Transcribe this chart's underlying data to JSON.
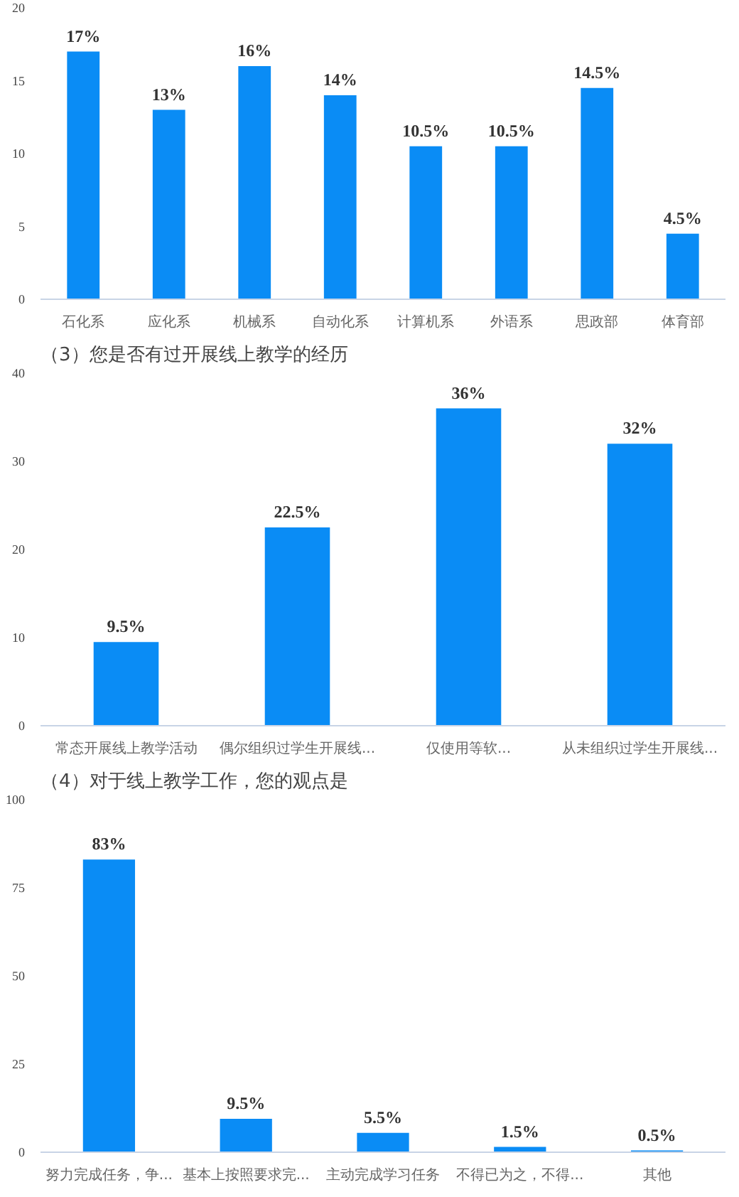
{
  "chart_data": [
    {
      "type": "bar",
      "categories": [
        "石化系",
        "应化系",
        "机械系",
        "自动化系",
        "计算机系",
        "外语系",
        "思政部",
        "体育部"
      ],
      "values": [
        17,
        13,
        16,
        14,
        10.5,
        10.5,
        14.5,
        4.5
      ],
      "value_labels": [
        "17%",
        "13%",
        "16%",
        "14%",
        "10.5%",
        "10.5%",
        "14.5%",
        "4.5%"
      ],
      "color": "#0a8cf5",
      "ylim": [
        0,
        20
      ],
      "yticks": [
        0,
        5,
        10,
        15,
        20
      ]
    },
    {
      "type": "bar",
      "title": "（3）您是否有过开展线上教学的经历",
      "categories": [
        "常态开展线上教学活动",
        "偶尔组织过学生开展线...",
        "仅使用等软...",
        "从未组织过学生开展线..."
      ],
      "values": [
        9.5,
        22.5,
        36,
        32
      ],
      "value_labels": [
        "9.5%",
        "22.5%",
        "36%",
        "32%"
      ],
      "color": "#0a8cf5",
      "ylim": [
        0,
        40
      ],
      "yticks": [
        0,
        10,
        20,
        30,
        40
      ]
    },
    {
      "type": "bar",
      "title": "（4）对于线上教学工作，您的观点是",
      "categories": [
        "努力完成任务，争...",
        "基本上按照要求完...",
        "主动完成学习任务",
        "不得已为之，不得...",
        "其他"
      ],
      "values": [
        83,
        9.5,
        5.5,
        1.5,
        0.5
      ],
      "value_labels": [
        "83%",
        "9.5%",
        "5.5%",
        "1.5%",
        "0.5%"
      ],
      "color": "#0a8cf5",
      "ylim": [
        0,
        100
      ],
      "yticks": [
        0,
        25,
        50,
        75,
        100
      ]
    }
  ]
}
